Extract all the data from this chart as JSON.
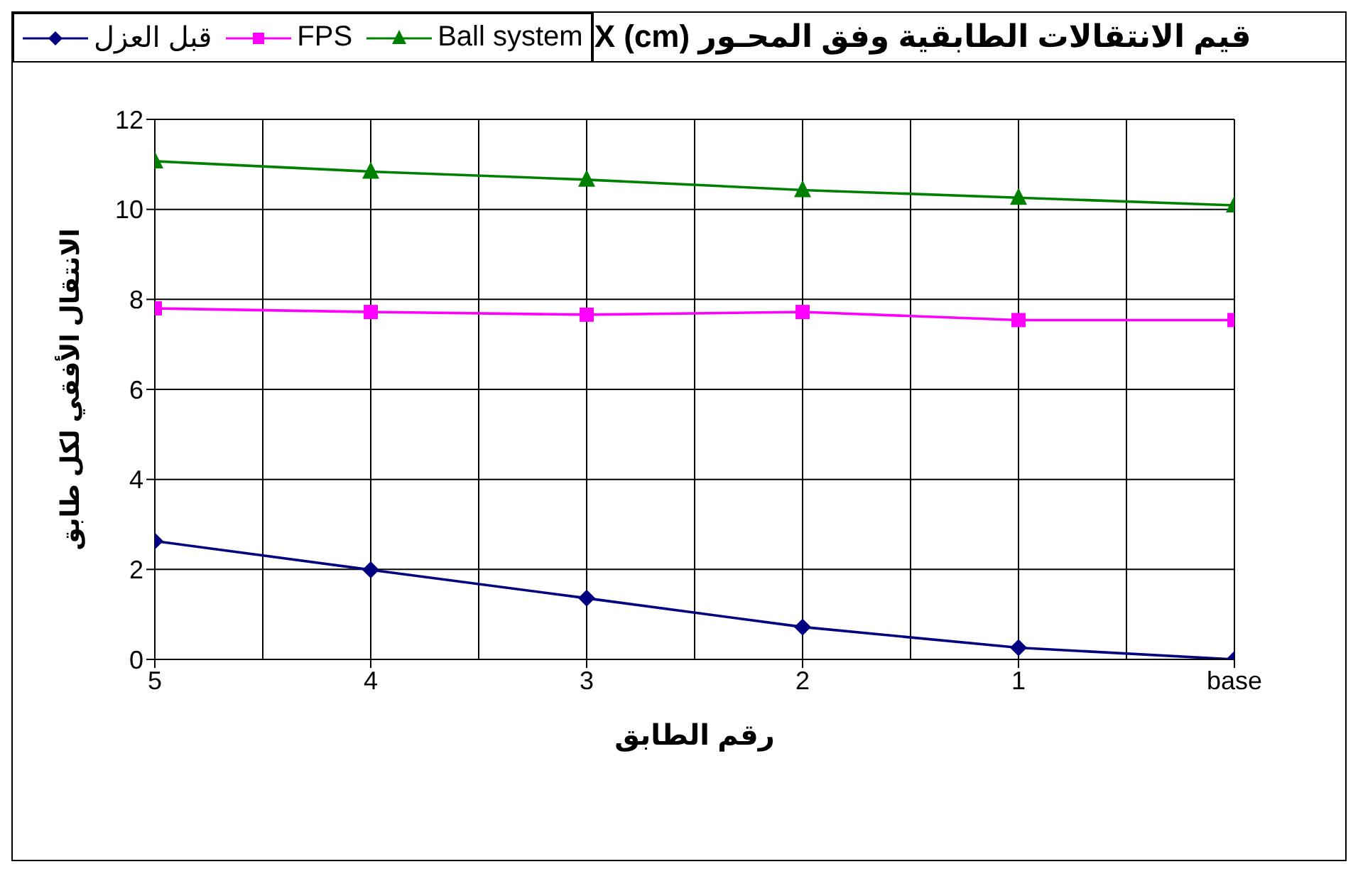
{
  "chart_data": {
    "type": "line",
    "title": "قيم الانتقالات الطابقية وفق المحـور X (cm)",
    "xlabel": "رقم الطابق",
    "ylabel": "الانتقال الأفقي لكل طابق",
    "categories": [
      "5",
      "4",
      "3",
      "2",
      "1",
      "base"
    ],
    "series": [
      {
        "name": "قبل العزل",
        "color": "#000080",
        "marker": "diamond",
        "values": [
          2.63,
          1.99,
          1.36,
          0.72,
          0.26,
          0
        ]
      },
      {
        "name": "FPS",
        "color": "#ff00ff",
        "marker": "square",
        "values": [
          7.8,
          7.72,
          7.66,
          7.72,
          7.54,
          7.54
        ]
      },
      {
        "name": "Ball system",
        "color": "#008000",
        "marker": "triangle",
        "values": [
          11.07,
          10.84,
          10.66,
          10.43,
          10.26,
          10.09
        ]
      }
    ],
    "ylim": [
      0,
      12
    ],
    "yticks": [
      0,
      2,
      4,
      6,
      8,
      10,
      12
    ],
    "grid": true,
    "legend": "top left"
  }
}
